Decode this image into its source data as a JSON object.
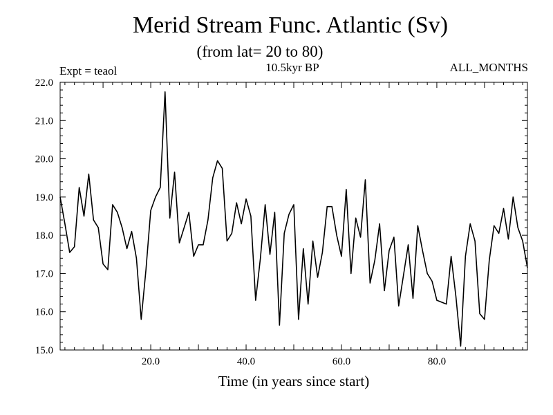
{
  "chart_data": {
    "type": "line",
    "title": "Merid Stream Func. Atlantic (Sv)",
    "subtitle": "(from lat= 20 to 80)",
    "experiment_label": "Expt = teaol",
    "period_label": "10.5kyr BP",
    "months_label": "ALL_MONTHS",
    "xlabel": "Time (in years since start)",
    "ylabel": "",
    "xlim": [
      1,
      99
    ],
    "ylim": [
      15.0,
      22.0
    ],
    "x_ticks": [
      20,
      40,
      60,
      80
    ],
    "x_tick_labels": [
      "20.0",
      "40.0",
      "60.0",
      "80.0"
    ],
    "y_ticks": [
      15,
      16,
      17,
      18,
      19,
      20,
      21,
      22
    ],
    "y_tick_labels": [
      "15.0",
      "16.0",
      "17.0",
      "18.0",
      "19.0",
      "20.0",
      "21.0",
      "22.0"
    ],
    "series": [
      {
        "name": "Merid Stream Func.",
        "color": "#000000",
        "x": [
          1,
          2,
          3,
          4,
          5,
          6,
          7,
          8,
          9,
          10,
          11,
          12,
          13,
          14,
          15,
          16,
          17,
          18,
          19,
          20,
          21,
          22,
          23,
          24,
          25,
          26,
          27,
          28,
          29,
          30,
          31,
          32,
          33,
          34,
          35,
          36,
          37,
          38,
          39,
          40,
          41,
          42,
          43,
          44,
          45,
          46,
          47,
          48,
          49,
          50,
          51,
          52,
          53,
          54,
          55,
          56,
          57,
          58,
          59,
          60,
          61,
          62,
          63,
          64,
          65,
          66,
          67,
          68,
          69,
          70,
          71,
          72,
          73,
          74,
          75,
          76,
          77,
          78,
          79,
          80,
          81,
          82,
          83,
          84,
          85,
          86,
          87,
          88,
          89,
          90,
          91,
          92,
          93,
          94,
          95,
          96,
          97,
          98,
          99
        ],
        "values": [
          19.0,
          18.3,
          17.55,
          17.7,
          19.25,
          18.5,
          19.6,
          18.4,
          18.2,
          17.25,
          17.1,
          18.8,
          18.6,
          18.2,
          17.65,
          18.1,
          17.4,
          15.8,
          17.1,
          18.65,
          19.0,
          19.25,
          21.75,
          18.45,
          19.65,
          17.8,
          18.2,
          18.6,
          17.45,
          17.75,
          17.75,
          18.4,
          19.5,
          19.95,
          19.75,
          17.85,
          18.05,
          18.85,
          18.3,
          18.95,
          18.5,
          16.3,
          17.4,
          18.8,
          17.5,
          18.6,
          15.65,
          18.05,
          18.55,
          18.8,
          15.8,
          17.65,
          16.2,
          17.85,
          16.9,
          17.55,
          18.75,
          18.75,
          18.0,
          17.45,
          19.2,
          17.0,
          18.45,
          17.95,
          19.45,
          16.75,
          17.35,
          18.3,
          16.55,
          17.6,
          17.95,
          16.15,
          16.95,
          17.75,
          16.35,
          18.25,
          17.6,
          17.0,
          16.8,
          16.3,
          16.25,
          16.2,
          17.45,
          16.4,
          15.1,
          17.45,
          18.3,
          17.85,
          15.95,
          15.8,
          17.35,
          18.25,
          18.05,
          18.7,
          17.9,
          19.0,
          18.2,
          17.85,
          17.15
        ]
      }
    ]
  }
}
